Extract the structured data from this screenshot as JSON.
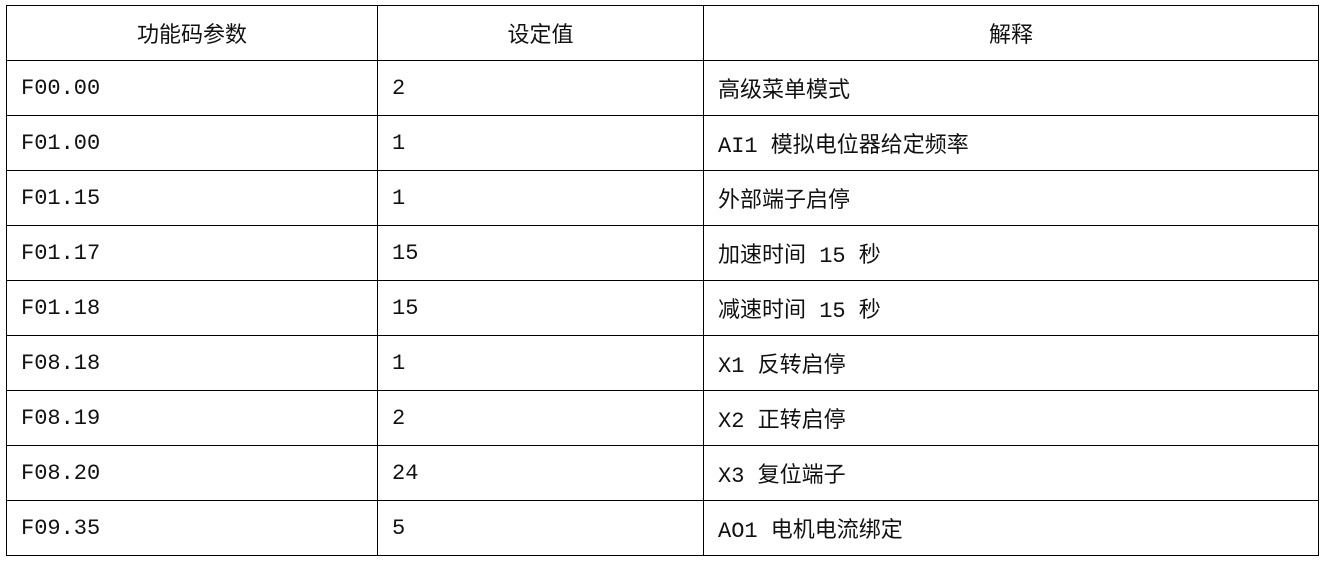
{
  "table": {
    "headers": [
      "功能码参数",
      "设定值",
      "解释"
    ],
    "rows": [
      [
        "F00.00",
        "2",
        "高级菜单模式"
      ],
      [
        "F01.00",
        "1",
        "AI1 模拟电位器给定频率"
      ],
      [
        "F01.15",
        "1",
        "外部端子启停"
      ],
      [
        "F01.17",
        "15",
        "加速时间 15 秒"
      ],
      [
        "F01.18",
        "15",
        "减速时间 15 秒"
      ],
      [
        "F08.18",
        "1",
        "X1 反转启停"
      ],
      [
        "F08.19",
        "2",
        "X2 正转启停"
      ],
      [
        "F08.20",
        "24",
        "X3 复位端子"
      ],
      [
        "F09.35",
        "5",
        "AO1 电机电流绑定"
      ]
    ]
  }
}
